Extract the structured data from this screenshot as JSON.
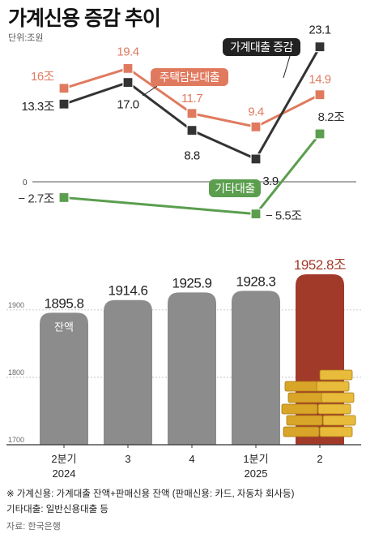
{
  "title": "가계신용 증감 추이",
  "unit": "단위:조원",
  "chart_data": [
    {
      "type": "line",
      "categories": [
        "2분기 2024",
        "3",
        "4",
        "1분기 2025",
        "2"
      ],
      "zero_label": "0",
      "series": [
        {
          "name": "주택담보대출",
          "values": [
            16,
            19.4,
            11.7,
            9.4,
            14.9
          ],
          "labels": [
            "16조",
            "19.4",
            "11.7",
            "9.4",
            "14.9"
          ],
          "color": "#e07a5f"
        },
        {
          "name": "가계대출 증감",
          "values": [
            13.3,
            17.0,
            8.8,
            3.9,
            23.1
          ],
          "labels": [
            "13.3조",
            "17.0",
            "8.8",
            "3.9",
            "23.1"
          ],
          "color": "#333333"
        },
        {
          "name": "기타대출",
          "values": [
            -2.7,
            null,
            null,
            -5.5,
            8.2
          ],
          "labels": [
            "− 2.7조",
            "",
            "",
            "− 5.5조",
            "8.2조"
          ],
          "color": "#5a9e4e"
        }
      ]
    },
    {
      "type": "bar",
      "categories": [
        "2분기 2024",
        "3",
        "4",
        "1분기 2025",
        "2"
      ],
      "values": [
        1895.8,
        1914.6,
        1925.9,
        1928.3,
        1952.8
      ],
      "labels": [
        "1895.8",
        "1914.6",
        "1925.9",
        "1928.3",
        "1952.8조"
      ],
      "bar_inner_label": "잔액",
      "ylim": [
        1700,
        1960
      ],
      "yticks": [
        1700,
        1800,
        1900
      ],
      "bar_color": "#8c8c8c",
      "highlight_color": "#a23a2a"
    }
  ],
  "x_axis": {
    "labels": [
      {
        "line1": "2분기",
        "line2": "2024"
      },
      {
        "line1": "3",
        "line2": ""
      },
      {
        "line1": "4",
        "line2": ""
      },
      {
        "line1": "1분기",
        "line2": "2025"
      },
      {
        "line1": "2",
        "line2": ""
      }
    ]
  },
  "footnotes": {
    "note1": "※ 가계신용: 가계대출 잔액+판매신용 잔액 (판매신용: 카드, 자동차 회사등)",
    "note2": "기타대출: 일반신용대출 등",
    "source": "자료: 한국은행"
  }
}
